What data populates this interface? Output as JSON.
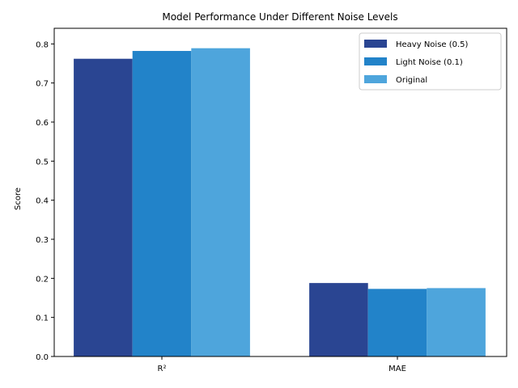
{
  "chart_data": {
    "type": "bar",
    "title": "Model Performance Under Different Noise Levels",
    "xlabel": "",
    "ylabel": "Score",
    "categories": [
      "R²",
      "MAE"
    ],
    "series": [
      {
        "name": "Heavy Noise (0.5)",
        "color": "#2a4592",
        "values": [
          0.762,
          0.188
        ]
      },
      {
        "name": "Light Noise (0.1)",
        "color": "#2283c9",
        "values": [
          0.782,
          0.173
        ]
      },
      {
        "name": "Original",
        "color": "#4ea5dc",
        "values": [
          0.789,
          0.175
        ]
      }
    ],
    "ylim": [
      0,
      0.84
    ],
    "yticks": [
      "0.0",
      "0.1",
      "0.2",
      "0.3",
      "0.4",
      "0.5",
      "0.6",
      "0.7",
      "0.8"
    ],
    "grid": false,
    "legend_position": "top-right"
  }
}
